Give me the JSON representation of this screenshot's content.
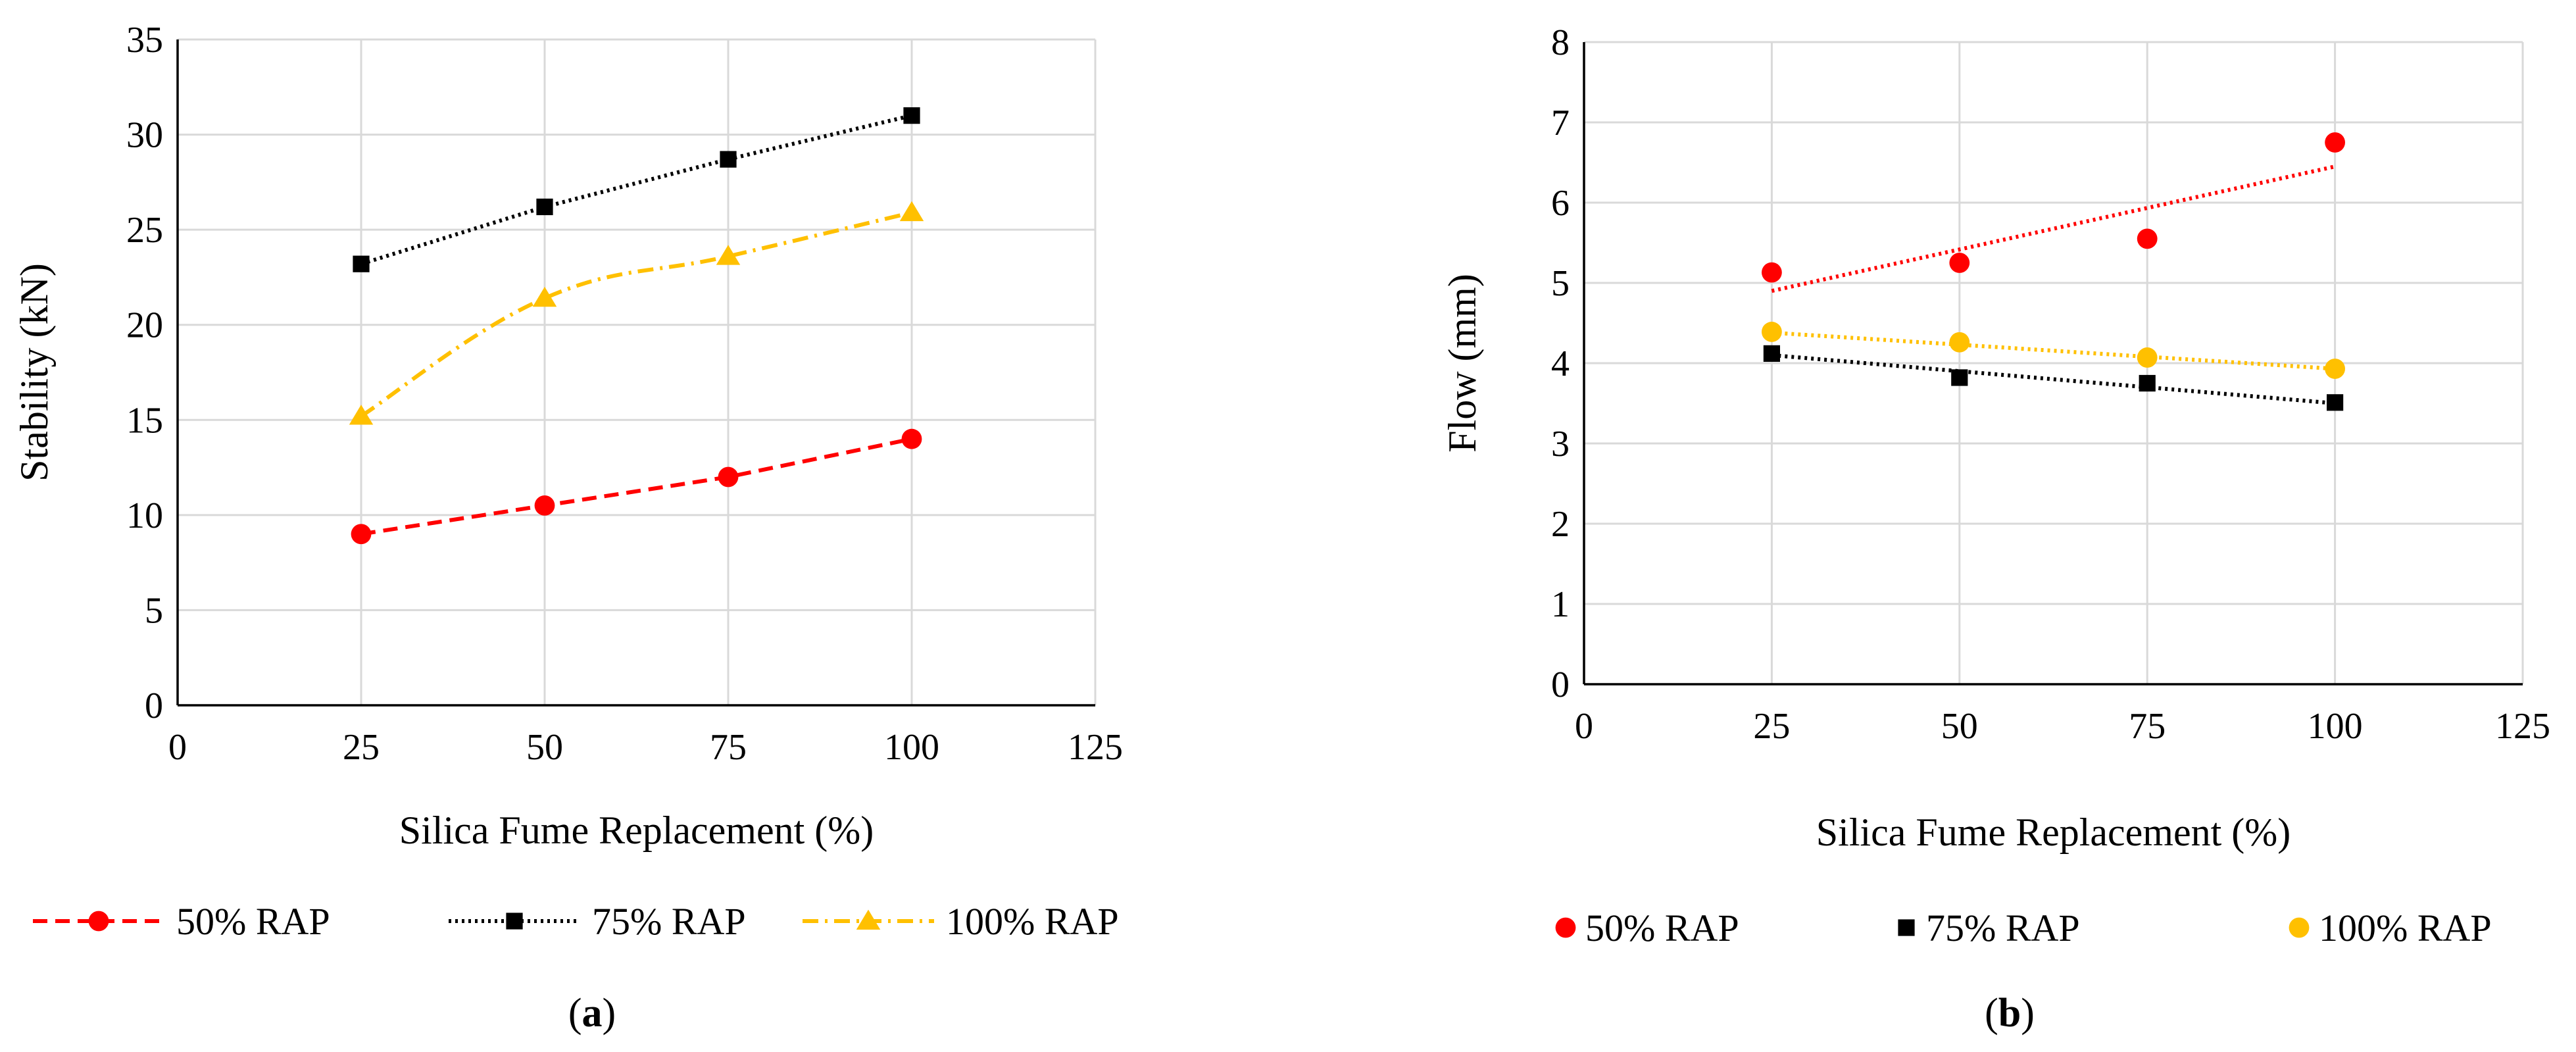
{
  "chart_data": [
    {
      "type": "line",
      "panel_label": "(a)",
      "panel_letter": "a",
      "xlabel": "Silica Fume Replacement (%)",
      "ylabel": "Stability (kN)",
      "xlim": [
        0,
        125
      ],
      "ylim": [
        0,
        35
      ],
      "xticks": [
        0,
        25,
        50,
        75,
        100,
        125
      ],
      "yticks": [
        0,
        5,
        10,
        15,
        20,
        25,
        30,
        35
      ],
      "grid": true,
      "legend_position": "bottom",
      "series": [
        {
          "name": "50% RAP",
          "color": "#ff0000",
          "marker": "circle",
          "line": "dashed",
          "smooth": false,
          "x": [
            25,
            50,
            75,
            100
          ],
          "y": [
            9.0,
            10.5,
            12.0,
            14.0
          ]
        },
        {
          "name": "75% RAP",
          "color": "#000000",
          "marker": "square",
          "line": "dotted",
          "smooth": false,
          "x": [
            25,
            50,
            75,
            100
          ],
          "y": [
            23.2,
            26.2,
            28.7,
            31.0
          ]
        },
        {
          "name": "100% RAP",
          "color": "#ffc000",
          "marker": "triangle",
          "line": "dashdot",
          "smooth": true,
          "x": [
            25,
            50,
            75,
            100
          ],
          "y": [
            15.2,
            21.4,
            23.6,
            25.9
          ]
        }
      ]
    },
    {
      "type": "scatter",
      "panel_label": "(b)",
      "panel_letter": "b",
      "xlabel": "Silica Fume Replacement (%)",
      "ylabel": "Flow (mm)",
      "xlim": [
        0,
        125
      ],
      "ylim": [
        0,
        8
      ],
      "xticks": [
        0,
        25,
        50,
        75,
        100,
        125
      ],
      "yticks": [
        0,
        1,
        2,
        3,
        4,
        5,
        6,
        7,
        8
      ],
      "grid": true,
      "legend_position": "bottom",
      "series": [
        {
          "name": "50% RAP",
          "color": "#ff0000",
          "marker": "circle",
          "x": [
            25,
            50,
            75,
            100
          ],
          "y": [
            5.13,
            5.25,
            5.55,
            6.75
          ],
          "trendline": {
            "line": "dotted",
            "y_start": 4.9,
            "y_end": 6.45
          }
        },
        {
          "name": "75% RAP",
          "color": "#000000",
          "marker": "square",
          "x": [
            25,
            50,
            75,
            100
          ],
          "y": [
            4.12,
            3.82,
            3.75,
            3.51
          ],
          "trendline": {
            "line": "dotted",
            "y_start": 4.1,
            "y_end": 3.5
          }
        },
        {
          "name": "100% RAP",
          "color": "#ffc000",
          "marker": "circle",
          "x": [
            25,
            50,
            75,
            100
          ],
          "y": [
            4.39,
            4.26,
            4.07,
            3.93
          ],
          "trendline": {
            "line": "dotted",
            "y_start": 4.38,
            "y_end": 3.93
          }
        }
      ]
    }
  ]
}
